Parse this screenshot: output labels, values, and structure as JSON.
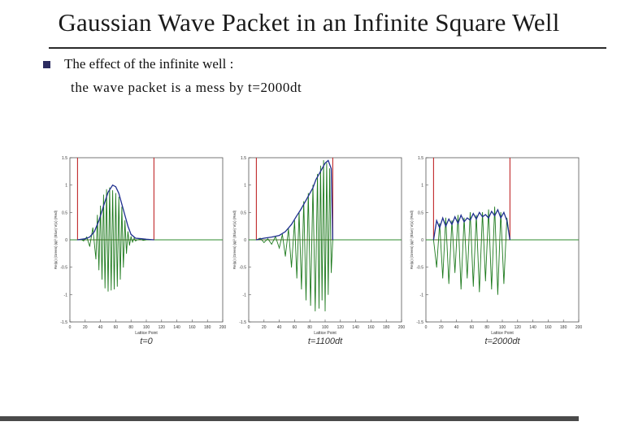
{
  "slide": {
    "title": "Gaussian Wave Packet in an Infinite Square Well",
    "bullet_line1": "The effect of the infinite well :",
    "bullet_line2": "the wave packet is a mess by t=2000dt"
  },
  "colors": {
    "well": "#c0282a",
    "real_part": "#1e7a1e",
    "magnitude": "#1f2f8f",
    "axis_zero": "#2e8b2e",
    "frame": "#555555"
  },
  "chart_data": [
    {
      "type": "line",
      "caption": "t=0",
      "xlabel": "Lattice Point",
      "ylabel": "Re(ψ) (Green)  |ψ|² (Blue)  V(x) (Red)",
      "xlim": [
        0,
        200
      ],
      "ylim": [
        -1.5,
        1.5
      ],
      "xticks": [
        0,
        20,
        40,
        60,
        80,
        100,
        120,
        140,
        160,
        180,
        200
      ],
      "yticks": [
        1.5,
        1,
        0.5,
        0,
        -0.5,
        -1,
        -1.5
      ],
      "ytick_labels": [
        "1.5",
        "1",
        "0.5",
        "0",
        "-0.5",
        "-1",
        "-1.5"
      ],
      "well_walls": [
        10,
        110
      ],
      "series": [
        {
          "name": "Re(psi)",
          "x": [
            10,
            14,
            18,
            22,
            26,
            30,
            34,
            36,
            38,
            40,
            42,
            44,
            46,
            48,
            50,
            52,
            54,
            56,
            58,
            60,
            62,
            64,
            66,
            68,
            70,
            72,
            74,
            76,
            78,
            80,
            82,
            84,
            86,
            88,
            92,
            96,
            100,
            104,
            110
          ],
          "y": [
            0,
            0.01,
            -0.02,
            0.05,
            -0.12,
            0.22,
            -0.35,
            0.45,
            -0.55,
            0.62,
            -0.72,
            0.82,
            -0.88,
            0.92,
            -0.94,
            0.95,
            -0.92,
            0.9,
            -0.9,
            0.85,
            -0.85,
            0.78,
            -0.72,
            0.6,
            -0.5,
            0.35,
            -0.25,
            0.15,
            -0.1,
            0.06,
            -0.04,
            0.03,
            -0.02,
            0,
            0.01,
            -0.01,
            0,
            0,
            0
          ]
        },
        {
          "name": "|psi|^2",
          "x": [
            10,
            20,
            26,
            32,
            38,
            44,
            50,
            56,
            60,
            64,
            70,
            76,
            80,
            86,
            94,
            100,
            110
          ],
          "y": [
            0,
            0.02,
            0.05,
            0.15,
            0.35,
            0.62,
            0.87,
            1.0,
            0.97,
            0.85,
            0.55,
            0.25,
            0.1,
            0.03,
            0.02,
            0.01,
            0
          ]
        }
      ]
    },
    {
      "type": "line",
      "caption": "t=1100dt",
      "xlabel": "Lattice Point",
      "ylabel": "Re(ψ) (Green)  |ψ|² (Blue)  V(x) (Red)",
      "xlim": [
        0,
        200
      ],
      "ylim": [
        -1.5,
        1.5
      ],
      "xticks": [
        0,
        20,
        40,
        60,
        80,
        100,
        120,
        140,
        160,
        180,
        200
      ],
      "yticks": [
        1.5,
        1,
        0.5,
        0,
        -0.5,
        -1,
        -1.5
      ],
      "ytick_labels": [
        "1.5",
        "1",
        "0.5",
        "0",
        "-0.5",
        "-1",
        "-1.5"
      ],
      "well_walls": [
        10,
        110
      ],
      "series": [
        {
          "name": "Re(psi)",
          "x": [
            10,
            15,
            20,
            25,
            30,
            35,
            40,
            44,
            48,
            52,
            56,
            60,
            63,
            66,
            69,
            72,
            75,
            78,
            81,
            84,
            87,
            90,
            92,
            94,
            96,
            98,
            100,
            102,
            104,
            106,
            108,
            110
          ],
          "y": [
            0,
            0.03,
            -0.05,
            0.02,
            -0.08,
            0.06,
            -0.15,
            0.1,
            -0.3,
            0.2,
            -0.5,
            0.35,
            -0.7,
            0.5,
            -0.9,
            0.7,
            -1.1,
            0.85,
            -1.2,
            1.0,
            -1.3,
            1.2,
            -1.25,
            1.35,
            -1.1,
            1.45,
            -1.3,
            1.4,
            -1.0,
            1.3,
            -0.6,
            0
          ]
        },
        {
          "name": "|psi|^2",
          "x": [
            10,
            20,
            30,
            40,
            48,
            56,
            62,
            68,
            74,
            80,
            84,
            88,
            92,
            96,
            100,
            104,
            108,
            110
          ],
          "y": [
            0,
            0.03,
            0.05,
            0.08,
            0.15,
            0.28,
            0.42,
            0.55,
            0.7,
            0.85,
            0.95,
            1.1,
            1.2,
            1.3,
            1.4,
            1.45,
            1.3,
            0
          ]
        }
      ]
    },
    {
      "type": "line",
      "caption": "t=2000dt",
      "xlabel": "Lattice Point",
      "ylabel": "Re(ψ) (Green)  |ψ|² (Blue)  V(x) (Red)",
      "xlim": [
        0,
        200
      ],
      "ylim": [
        -1.5,
        1.5
      ],
      "xticks": [
        0,
        20,
        40,
        60,
        80,
        100,
        120,
        140,
        160,
        180,
        200
      ],
      "yticks": [
        1.5,
        1,
        0.5,
        0,
        -0.5,
        -1,
        -1.5
      ],
      "ytick_labels": [
        "1.5",
        "1",
        "0.5",
        "0",
        "-0.5",
        "-1",
        "-1.5"
      ],
      "well_walls": [
        10,
        110
      ],
      "series": [
        {
          "name": "Re(psi)",
          "x": [
            10,
            14,
            18,
            22,
            26,
            30,
            34,
            38,
            42,
            46,
            50,
            54,
            58,
            62,
            66,
            70,
            74,
            78,
            82,
            86,
            90,
            94,
            98,
            102,
            106,
            110
          ],
          "y": [
            0,
            -0.5,
            0.3,
            -0.7,
            0.4,
            -0.8,
            0.35,
            -0.6,
            0.45,
            -0.9,
            0.4,
            -0.7,
            0.5,
            -0.85,
            0.45,
            -0.95,
            0.5,
            -0.75,
            0.55,
            -0.9,
            0.6,
            -1.0,
            0.5,
            -0.8,
            0.4,
            0
          ]
        },
        {
          "name": "|psi|^2",
          "x": [
            10,
            14,
            18,
            22,
            26,
            30,
            34,
            38,
            42,
            46,
            50,
            54,
            58,
            62,
            66,
            70,
            74,
            78,
            82,
            86,
            90,
            94,
            98,
            102,
            106,
            110
          ],
          "y": [
            0,
            0.35,
            0.22,
            0.4,
            0.25,
            0.38,
            0.28,
            0.42,
            0.3,
            0.45,
            0.33,
            0.4,
            0.36,
            0.48,
            0.38,
            0.5,
            0.42,
            0.46,
            0.4,
            0.52,
            0.44,
            0.55,
            0.4,
            0.5,
            0.35,
            0
          ]
        }
      ]
    }
  ]
}
